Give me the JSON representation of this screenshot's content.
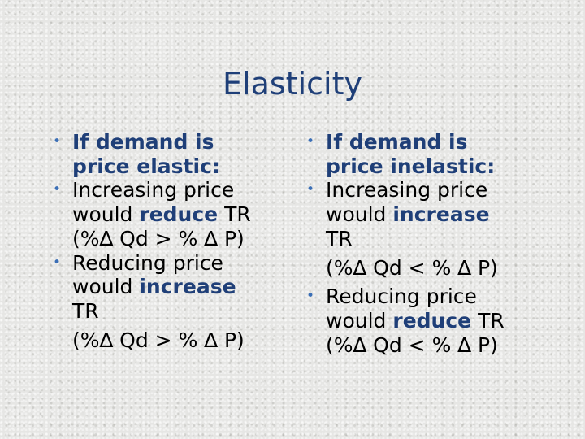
{
  "slide": {
    "title": "Elasticity"
  },
  "left_column": {
    "bullets": [
      {
        "bullet_symbol": "•",
        "line1": "If demand is",
        "line2": "price elastic:"
      },
      {
        "bullet_symbol": "•",
        "line1": "Increasing price",
        "line2_prefix": "would ",
        "line2_emphasis": "reduce",
        "line2_suffix": " TR",
        "line3": "(%∆ Qd > % ∆ P)"
      },
      {
        "bullet_symbol": "•",
        "line1": "Reducing price",
        "line2_prefix": "would ",
        "line2_emphasis": "increase",
        "line3": "TR",
        "line4": "(%∆ Qd > % ∆ P)"
      }
    ]
  },
  "right_column": {
    "bullets": [
      {
        "bullet_symbol": "•",
        "line1": "If demand is",
        "line2": "price inelastic:"
      },
      {
        "bullet_symbol": "•",
        "line1": "Increasing price",
        "line2_prefix": "would ",
        "line2_emphasis": "increase",
        "line3": "TR",
        "line4": "(%∆ Qd < % ∆ P)"
      },
      {
        "bullet_symbol": "•",
        "line1": "Reducing price",
        "line2_prefix": "would ",
        "line2_emphasis": "reduce",
        "line2_suffix": " TR",
        "line3": "(%∆ Qd < % ∆ P)"
      }
    ]
  },
  "colors": {
    "title": "#1f3f78",
    "emphasis": "#1f3f78",
    "bullet": "#3b6fb6",
    "body_text": "#000000",
    "background": "#e6e6e4"
  }
}
